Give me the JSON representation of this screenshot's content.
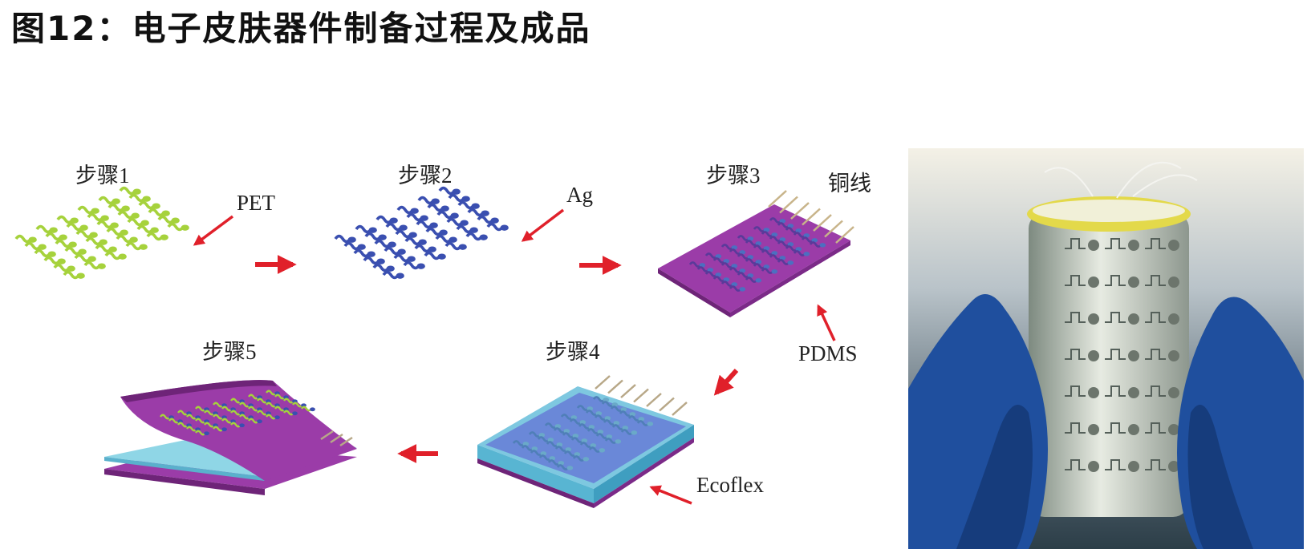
{
  "title": "图12：电子皮肤器件制备过程及成品",
  "steps": {
    "s1": "步骤1",
    "s2": "步骤2",
    "s3": "步骤3",
    "s4": "步骤4",
    "s5": "步骤5"
  },
  "labels": {
    "pet": "PET",
    "ag": "Ag",
    "copper": "铜线",
    "pdms": "PDMS",
    "ecoflex": "Ecoflex"
  },
  "colors": {
    "pet": "#a6d23c",
    "ag": "#3a4fb0",
    "pdms": "#9b3ca8",
    "ecoflex": "#7ec8e0",
    "arrow": "#e0202a",
    "glove": "#1f4f9e"
  }
}
